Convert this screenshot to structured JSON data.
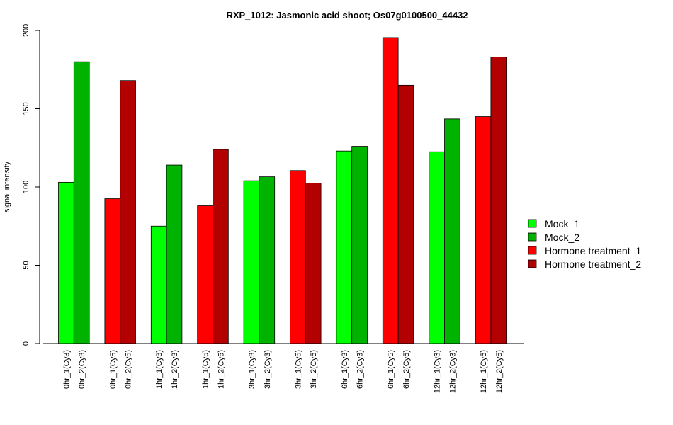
{
  "chart_data": {
    "type": "bar",
    "title": "RXP_1012: Jasmonic acid shoot; Os07g0100500_44432",
    "ylabel": "signal intensity",
    "ylim": [
      0,
      200
    ],
    "yticks": [
      0,
      50,
      100,
      150,
      200
    ],
    "categories": [
      "0hr_1(Cy3)",
      "0hr_2(Cy3)",
      "0hr_1(Cy5)",
      "0hr_2(Cy5)",
      "1hr_1(Cy3)",
      "1hr_2(Cy3)",
      "1hr_1(Cy5)",
      "1hr_2(Cy5)",
      "3hr_1(Cy3)",
      "3hr_2(Cy3)",
      "3hr_1(Cy5)",
      "3hr_2(Cy5)",
      "6hr_1(Cy3)",
      "6hr_2(Cy3)",
      "6hr_1(Cy5)",
      "6hr_2(Cy5)",
      "12hr_1(Cy3)",
      "12hr_2(Cy3)",
      "12hr_1(Cy5)",
      "12hr_2(Cy5)"
    ],
    "values": [
      103,
      180,
      92.5,
      168,
      75,
      114,
      88,
      124,
      104,
      106.5,
      110.5,
      102.5,
      123,
      126,
      195.5,
      165,
      122.5,
      143.5,
      145,
      183
    ],
    "bar_series": [
      "Mock_1",
      "Mock_2",
      "Hormone treatment_1",
      "Hormone treatment_2",
      "Mock_1",
      "Mock_2",
      "Hormone treatment_1",
      "Hormone treatment_2",
      "Mock_1",
      "Mock_2",
      "Hormone treatment_1",
      "Hormone treatment_2",
      "Mock_1",
      "Mock_2",
      "Hormone treatment_1",
      "Hormone treatment_2",
      "Mock_1",
      "Mock_2",
      "Hormone treatment_1",
      "Hormone treatment_2"
    ],
    "legend": [
      {
        "name": "Mock_1",
        "color": "#00ff00"
      },
      {
        "name": "Mock_2",
        "color": "#00b300"
      },
      {
        "name": "Hormone treatment_1",
        "color": "#ff0000"
      },
      {
        "name": "Hormone treatment_2",
        "color": "#b30000"
      }
    ],
    "legend_position": "right",
    "grid": false
  }
}
